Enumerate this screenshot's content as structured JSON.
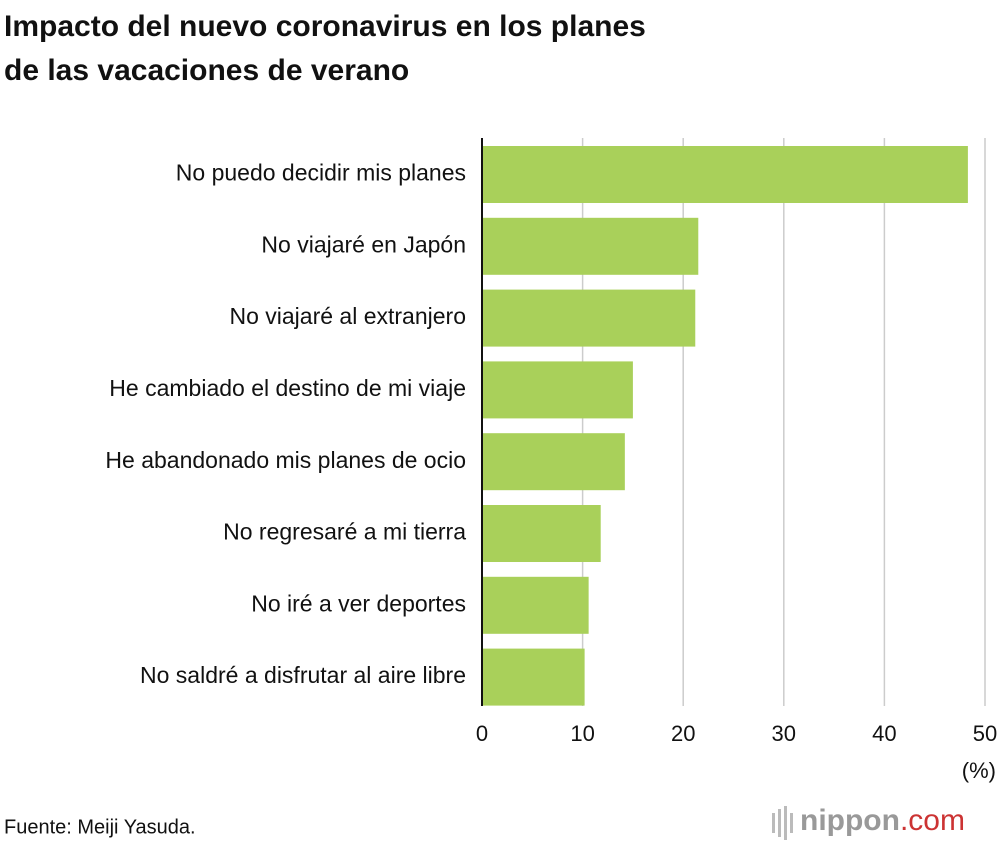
{
  "chart_data": {
    "type": "bar",
    "orientation": "horizontal",
    "title_lines": [
      "Impacto del nuevo coronavirus en los planes",
      "de las vacaciones de verano"
    ],
    "categories": [
      "No puedo decidir mis planes",
      "No viajaré en Japón",
      "No viajaré al extranjero",
      "He cambiado el destino de mi viaje",
      "He abandonado mis planes de ocio",
      "No regresaré a mi tierra",
      "No iré a ver deportes",
      "No saldré a disfrutar al aire libre"
    ],
    "values": [
      48.3,
      21.5,
      21.2,
      15.0,
      14.2,
      11.8,
      10.6,
      10.2
    ],
    "color": "#a9d05a",
    "xlim": [
      0,
      50
    ],
    "xticks": [
      0,
      10,
      20,
      30,
      40,
      50
    ],
    "grid": true,
    "unit_label": "(%)",
    "source": "Fuente: Meiji Yasuda.",
    "logo": {
      "name": "nippon",
      "suffix": ".com"
    }
  }
}
